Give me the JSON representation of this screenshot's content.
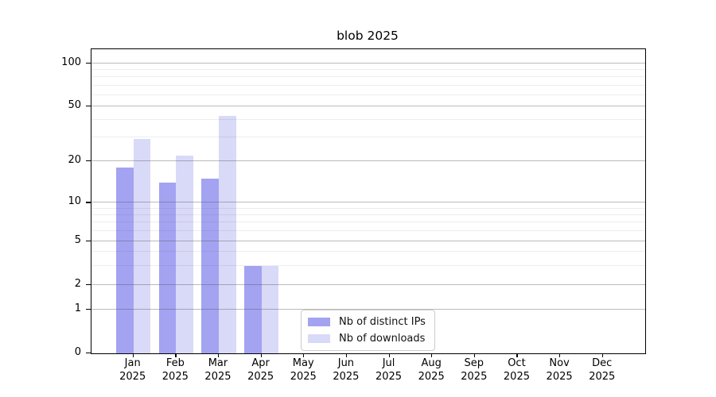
{
  "figure": {
    "title": "blob 2025"
  },
  "chart_data": {
    "type": "bar",
    "title": "blob 2025",
    "categories": [
      "Jan 2025",
      "Feb 2025",
      "Mar 2025",
      "Apr 2025",
      "May 2025",
      "Jun 2025",
      "Jul 2025",
      "Aug 2025",
      "Sep 2025",
      "Oct 2025",
      "Nov 2025",
      "Dec 2025"
    ],
    "series": [
      {
        "name": "Nb of distinct IPs",
        "color": "#a3a3f2",
        "values": [
          18,
          14,
          15,
          3,
          0,
          0,
          0,
          0,
          0,
          0,
          0,
          0
        ]
      },
      {
        "name": "Nb of downloads",
        "color": "#d9d9f8",
        "values": [
          29,
          22,
          43,
          3,
          0,
          0,
          0,
          0,
          0,
          0,
          0,
          0
        ]
      }
    ],
    "xlabel": "",
    "ylabel": "",
    "yscale": "symlog",
    "ylim": [
      0,
      125
    ],
    "yticks": [
      0,
      1,
      2,
      5,
      10,
      20,
      50,
      100
    ],
    "minor_yticks": [
      3,
      4,
      6,
      7,
      8,
      9,
      30,
      40,
      60,
      70,
      80,
      90
    ],
    "grid": "horizontal major+minor, drawn over bars",
    "legend_position": "inside lower center",
    "legend": [
      "Nb of distinct IPs",
      "Nb of downloads"
    ]
  }
}
